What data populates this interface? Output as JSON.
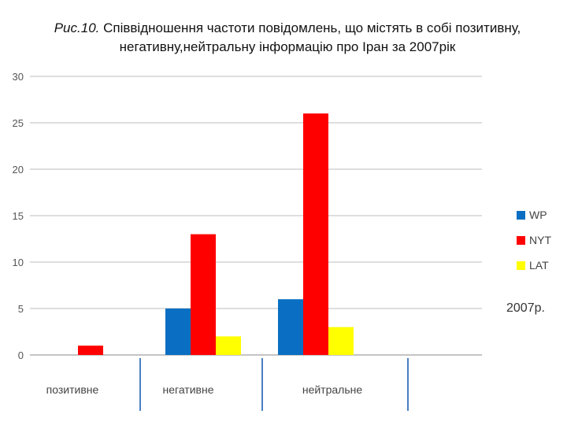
{
  "caption": {
    "prefix": "Рис.10.",
    "text": " Співвідношення частоти повідомлень, що містять в собі позитивну, негативну,нейтральну інформацію про Іран за 2007рік"
  },
  "chart_data": {
    "type": "bar",
    "categories": [
      "позитивне",
      "негативне",
      "нейтральне"
    ],
    "series": [
      {
        "name": "WP",
        "color": "#0a6fc2",
        "values": [
          0,
          5,
          6
        ]
      },
      {
        "name": "NYT",
        "color": "#ff0000",
        "values": [
          1,
          13,
          26
        ]
      },
      {
        "name": "LAT",
        "color": "#ffff00",
        "values": [
          0,
          2,
          3
        ]
      }
    ],
    "ylim": [
      0,
      30
    ],
    "yticks": [
      0,
      5,
      10,
      15,
      20,
      25,
      30
    ],
    "grid": true,
    "legend_position": "right",
    "annotation": "2007р."
  }
}
